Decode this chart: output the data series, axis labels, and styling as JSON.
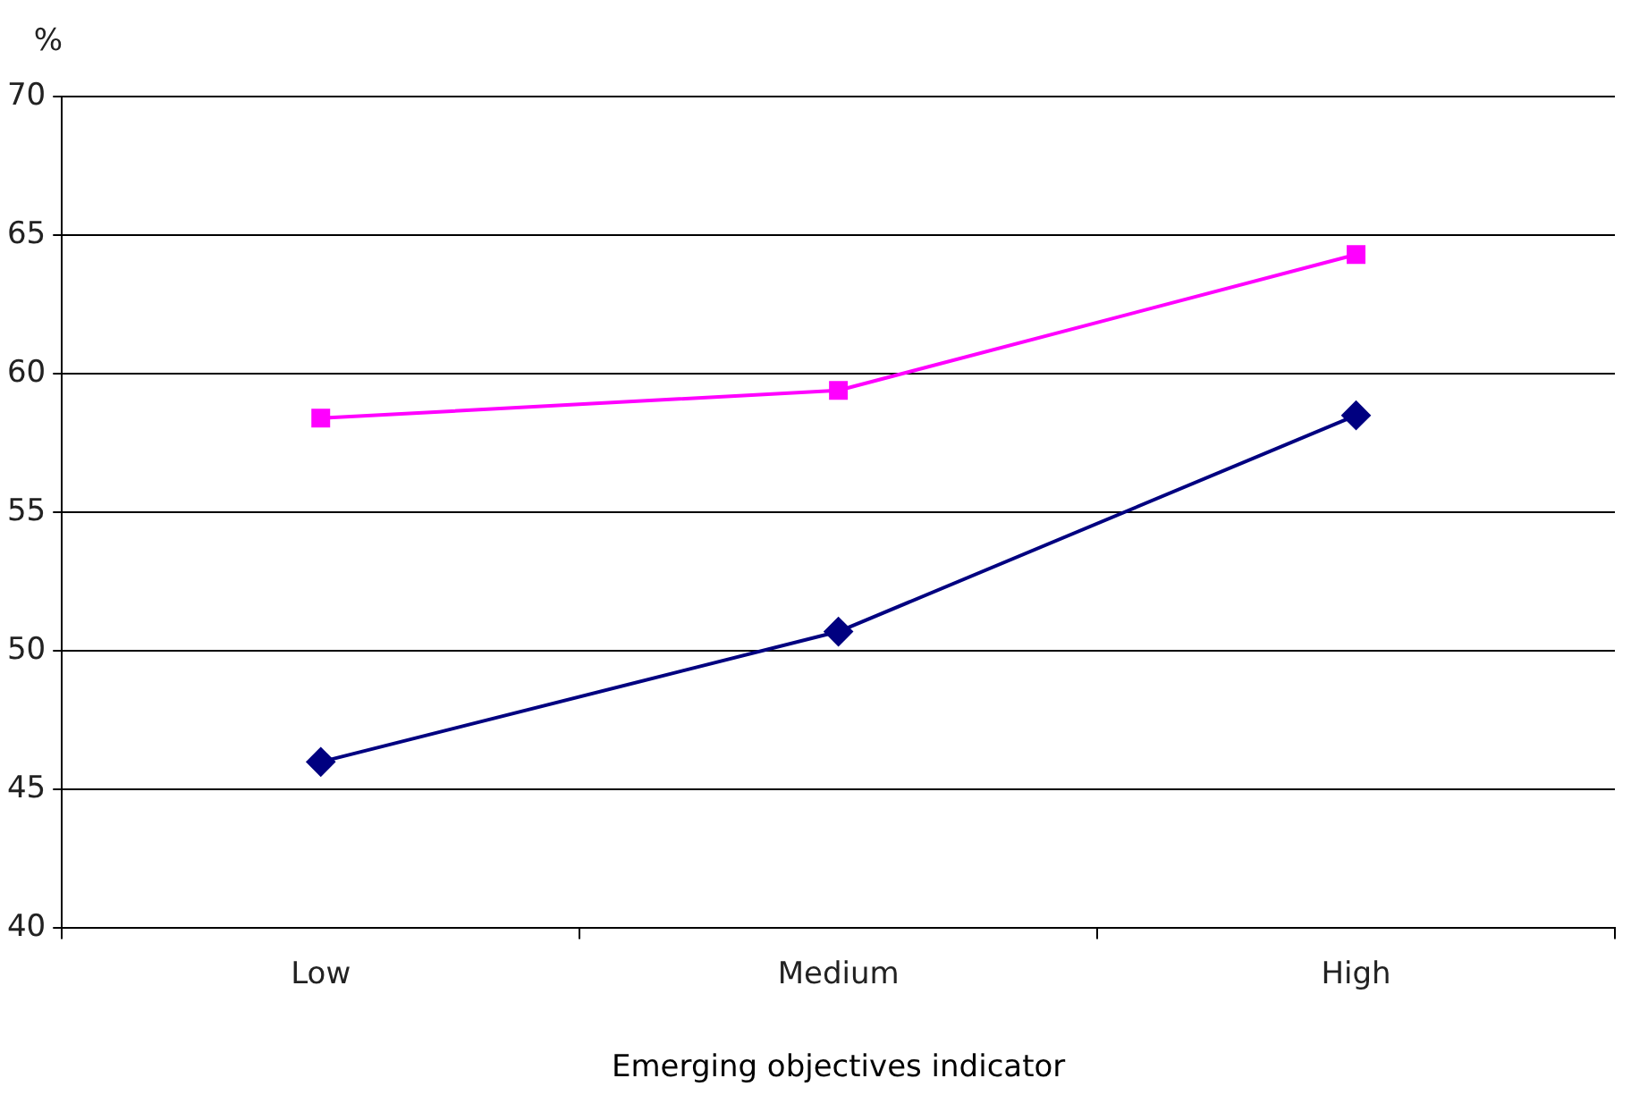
{
  "chart_data": {
    "type": "line",
    "xlabel": "Emerging objectives indicator",
    "ylabel": "%",
    "categories": [
      "Low",
      "Medium",
      "High"
    ],
    "series": [
      {
        "color": "#ff00ff",
        "marker": "square",
        "values": [
          58.4,
          59.4,
          64.3
        ]
      },
      {
        "color": "#000080",
        "marker": "diamond",
        "values": [
          46.0,
          50.7,
          58.5
        ]
      }
    ],
    "ylim": [
      40,
      70
    ],
    "yticks": [
      40,
      45,
      50,
      55,
      60,
      65,
      70
    ],
    "grid": "y",
    "legend": false,
    "line_style": "solid"
  }
}
